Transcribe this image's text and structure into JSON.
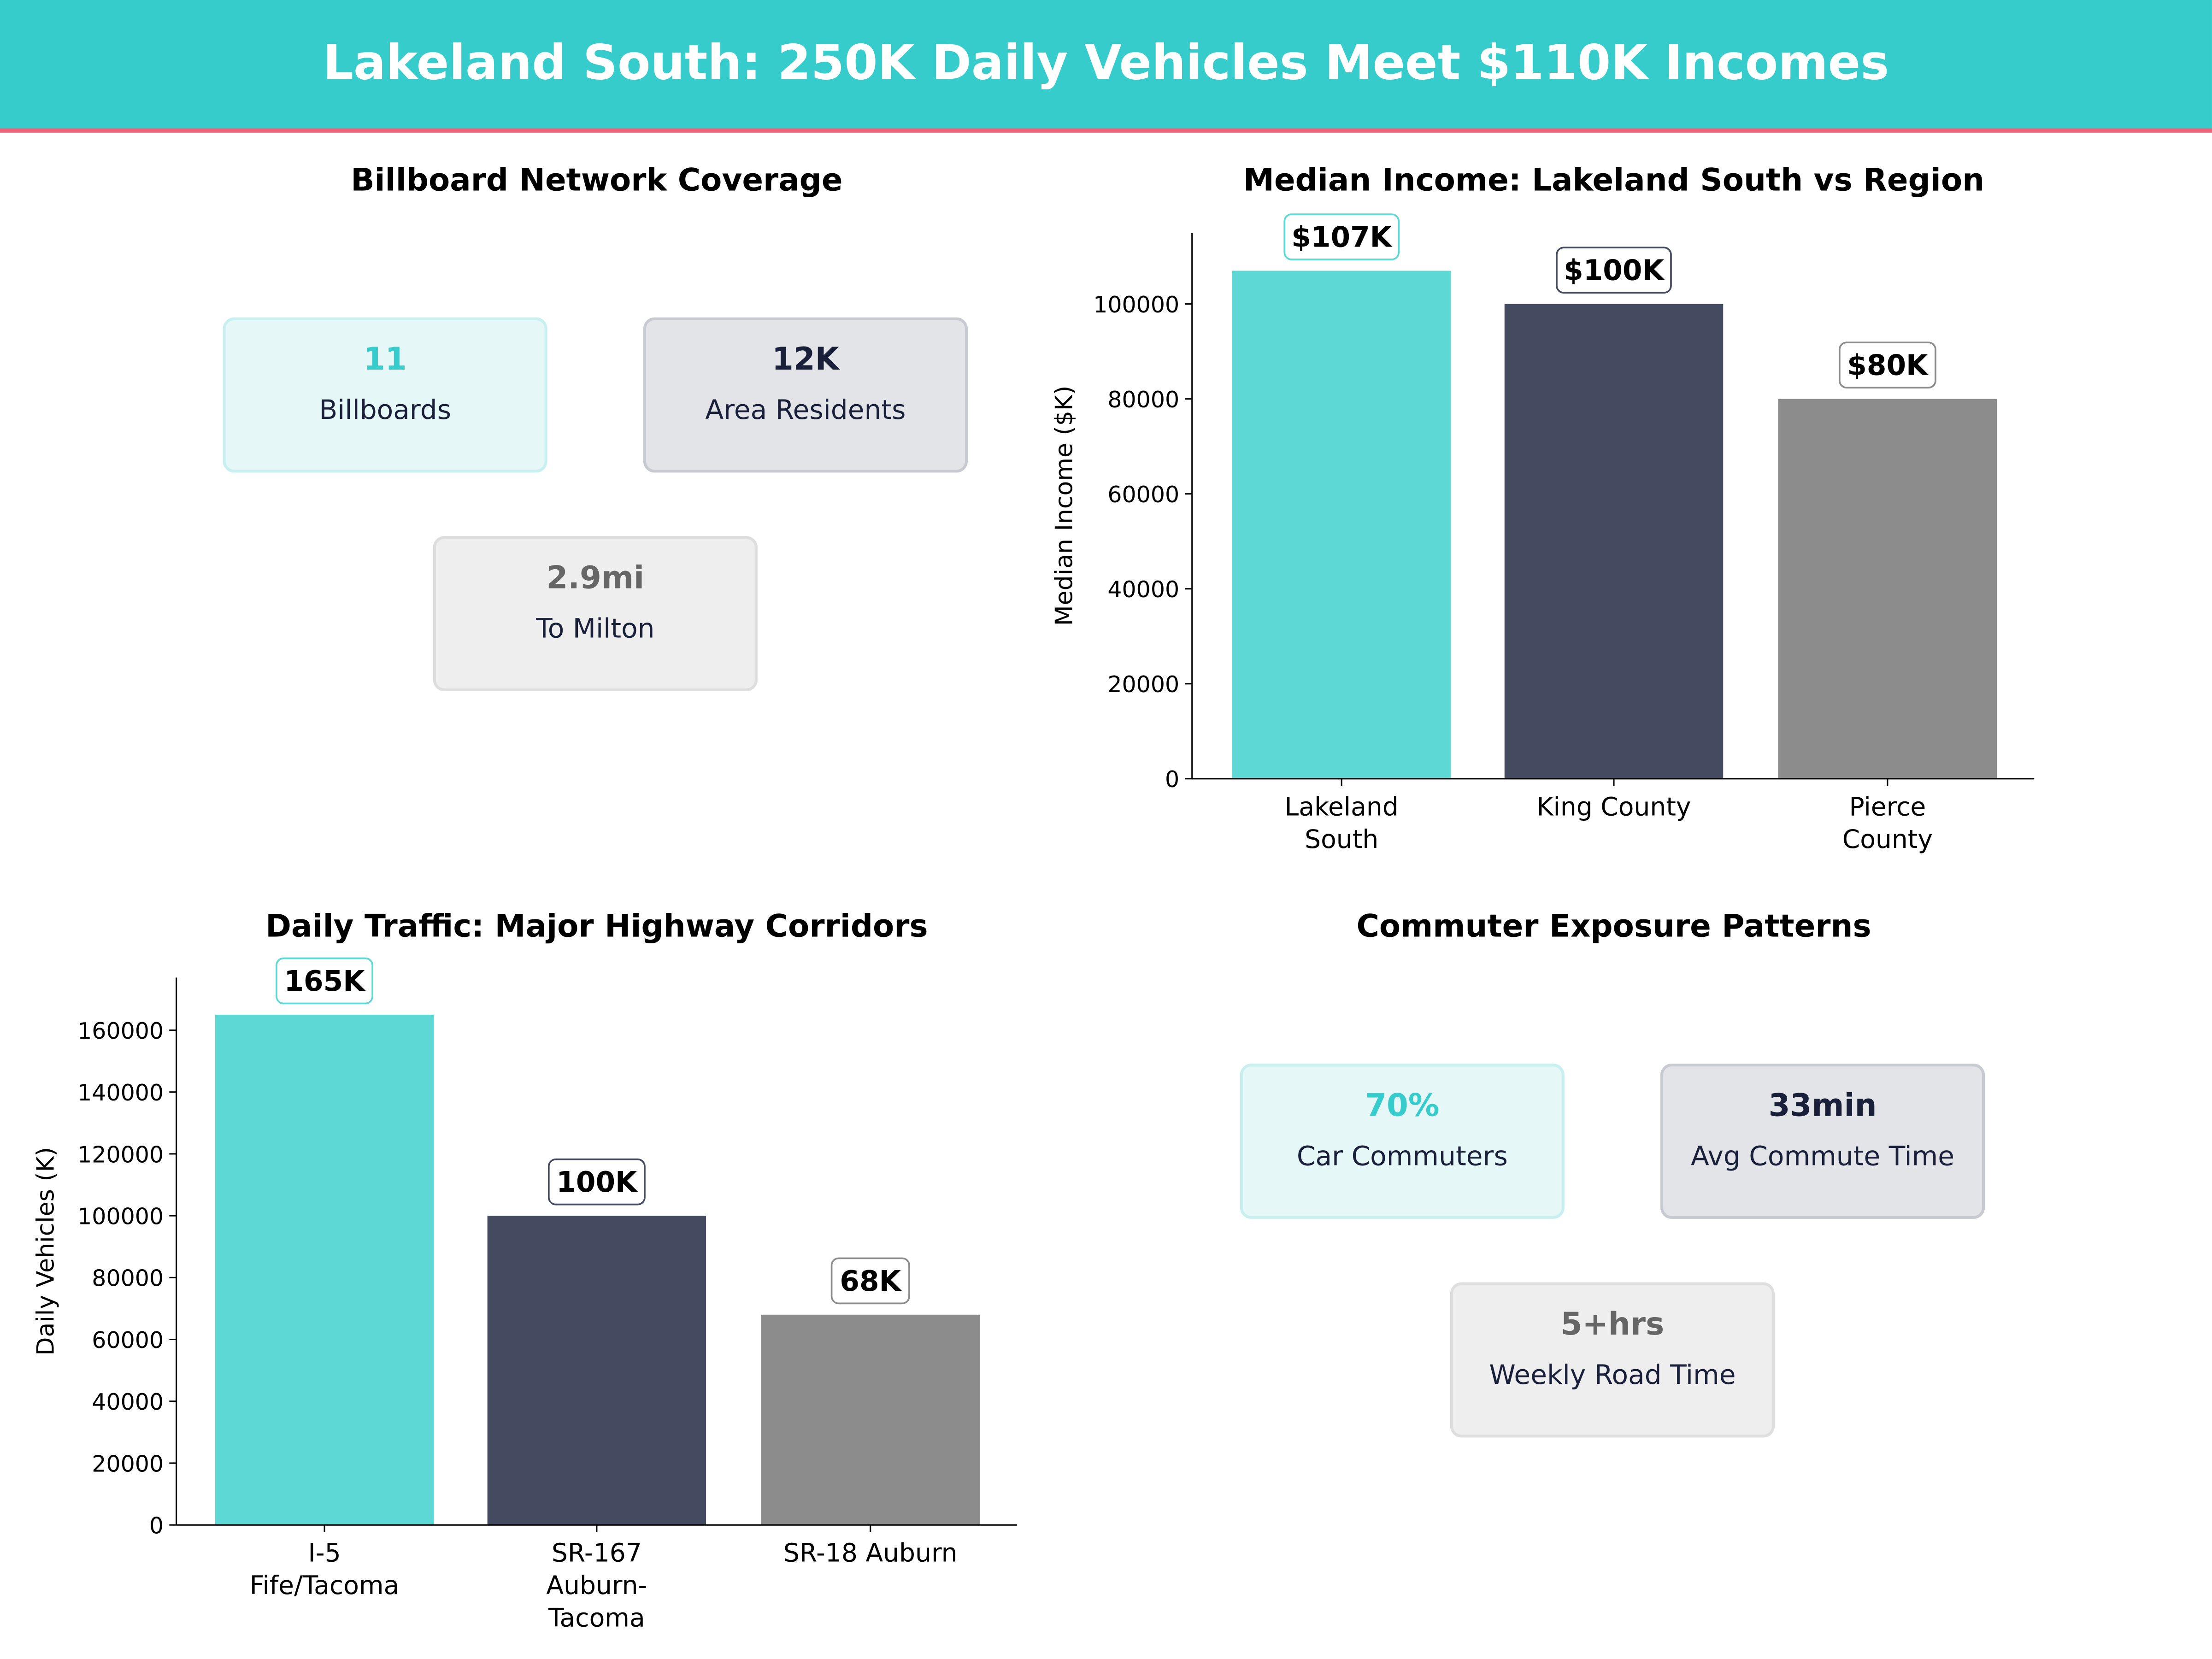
{
  "title": "Lakeland South: 250K Daily Vehicles Meet $110K Incomes",
  "colors": {
    "header": "#36CCCC",
    "accent_line": "#F06277",
    "teal": "#5ED8D5",
    "navy": "#444A5F",
    "gray": "#8C8C8C"
  },
  "coverage": {
    "title": "Billboard Network Coverage",
    "cards": [
      {
        "value": "11",
        "label": "Billboards",
        "style": "teal"
      },
      {
        "value": "12K",
        "label": "Area Residents",
        "style": "navy"
      },
      {
        "value": "2.9mi",
        "label": "To Milton",
        "style": "gray"
      }
    ]
  },
  "commuter": {
    "title": "Commuter Exposure Patterns",
    "cards": [
      {
        "value": "70%",
        "label": "Car Commuters",
        "style": "teal"
      },
      {
        "value": "33min",
        "label": "Avg Commute Time",
        "style": "navy"
      },
      {
        "value": "5+hrs",
        "label": "Weekly Road Time",
        "style": "gray"
      }
    ]
  },
  "chart_data": [
    {
      "type": "bar",
      "title": "Median Income: Lakeland South vs Region",
      "ylabel": "Median Income ($K)",
      "xlabel": "",
      "categories": [
        "Lakeland\nSouth",
        "King County",
        "Pierce\nCounty"
      ],
      "values": [
        107000,
        100000,
        80000
      ],
      "data_labels": [
        "$107K",
        "$100K",
        "$80K"
      ],
      "bar_colors": [
        "#5ED8D5",
        "#444A5F",
        "#8C8C8C"
      ],
      "yticks": [
        0,
        20000,
        40000,
        60000,
        80000,
        100000
      ],
      "ylim": [
        0,
        115000
      ],
      "grid": false
    },
    {
      "type": "bar",
      "title": "Daily Traffic: Major Highway Corridors",
      "ylabel": "Daily Vehicles (K)",
      "xlabel": "",
      "categories": [
        "I-5\nFife/Tacoma",
        "SR-167\nAuburn-\nTacoma",
        "SR-18 Auburn"
      ],
      "values": [
        165000,
        100000,
        68000
      ],
      "data_labels": [
        "165K",
        "100K",
        "68K"
      ],
      "bar_colors": [
        "#5ED8D5",
        "#444A5F",
        "#8C8C8C"
      ],
      "yticks": [
        0,
        20000,
        40000,
        60000,
        80000,
        100000,
        120000,
        140000,
        160000
      ],
      "ylim": [
        0,
        177000
      ],
      "grid": false
    }
  ]
}
